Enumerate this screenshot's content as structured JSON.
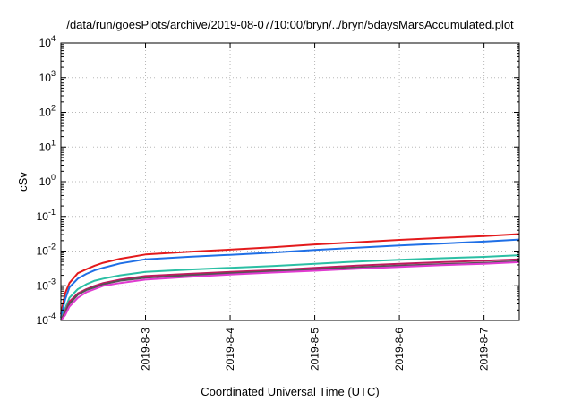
{
  "chart_data": {
    "type": "line",
    "title": "/data/run/goesPlots/archive/2019-08-07/10:00/bryn/../bryn/5daysMarsAccumulated.plot",
    "xlabel": "Coordinated Universal Time (UTC)",
    "ylabel": "cSv",
    "y_scale": "log",
    "ylim": [
      0.0001,
      10000
    ],
    "xlim": [
      "2019-08-02",
      "2019-08-07T10:00"
    ],
    "grid": true,
    "x_ticks": [
      "2019-8-3",
      "2019-8-4",
      "2019-8-5",
      "2019-8-6",
      "2019-8-7"
    ],
    "y_ticks": [
      {
        "value": 0.0001,
        "base": "10",
        "exp": "-4"
      },
      {
        "value": 0.001,
        "base": "10",
        "exp": "-3"
      },
      {
        "value": 0.01,
        "base": "10",
        "exp": "-2"
      },
      {
        "value": 0.1,
        "base": "10",
        "exp": "-1"
      },
      {
        "value": 1,
        "base": "10",
        "exp": "0"
      },
      {
        "value": 10,
        "base": "10",
        "exp": "1"
      },
      {
        "value": 100,
        "base": "10",
        "exp": "2"
      },
      {
        "value": 1000,
        "base": "10",
        "exp": "3"
      },
      {
        "value": 10000,
        "base": "10",
        "exp": "4"
      }
    ],
    "x": [
      "2019-08-02T00:00",
      "2019-08-02T01:12",
      "2019-08-02T02:24",
      "2019-08-02T04:48",
      "2019-08-02T07:12",
      "2019-08-02T09:36",
      "2019-08-02T12:00",
      "2019-08-02T16:48",
      "2019-08-03T00:00",
      "2019-08-03T12:00",
      "2019-08-04T00:00",
      "2019-08-04T12:00",
      "2019-08-05T00:00",
      "2019-08-05T12:00",
      "2019-08-06T00:00",
      "2019-08-06T12:00",
      "2019-08-07T00:00",
      "2019-08-07T10:00"
    ],
    "series": [
      {
        "color": "#e31a1c",
        "values": [
          0.00015,
          0.0006,
          0.0012,
          0.0023,
          0.003,
          0.0038,
          0.0046,
          0.006,
          0.008,
          0.0095,
          0.011,
          0.0128,
          0.0155,
          0.018,
          0.021,
          0.024,
          0.027,
          0.031
        ]
      },
      {
        "color": "#1f6fe6",
        "values": [
          0.00012,
          0.0004,
          0.0009,
          0.0016,
          0.0022,
          0.0028,
          0.0033,
          0.0044,
          0.0058,
          0.0068,
          0.0078,
          0.009,
          0.0108,
          0.0125,
          0.0145,
          0.0165,
          0.0188,
          0.0215
        ]
      },
      {
        "color": "#2bbfa4",
        "values": [
          0.0001,
          0.00022,
          0.00045,
          0.0008,
          0.0011,
          0.0014,
          0.0016,
          0.002,
          0.0025,
          0.0029,
          0.0033,
          0.0037,
          0.0043,
          0.005,
          0.0056,
          0.0062,
          0.0068,
          0.0076
        ]
      },
      {
        "color": "#c0185f",
        "values": [
          0.0001,
          0.00018,
          0.00035,
          0.0006,
          0.0008,
          0.001,
          0.0012,
          0.0015,
          0.0019,
          0.0022,
          0.0025,
          0.0028,
          0.0033,
          0.0038,
          0.0043,
          0.0048,
          0.0053,
          0.0058
        ]
      },
      {
        "color": "#555555",
        "values": [
          0.0001,
          0.00016,
          0.0003,
          0.00055,
          0.00075,
          0.0009,
          0.0011,
          0.0014,
          0.0017,
          0.002,
          0.0023,
          0.0026,
          0.003,
          0.0034,
          0.0038,
          0.0042,
          0.0046,
          0.0051
        ]
      },
      {
        "color": "#e03ad0",
        "values": [
          0.0001,
          0.00014,
          0.00025,
          0.00045,
          0.00065,
          0.0008,
          0.001,
          0.0012,
          0.0015,
          0.0018,
          0.0021,
          0.0024,
          0.0027,
          0.0031,
          0.0035,
          0.0039,
          0.0043,
          0.0048
        ]
      }
    ]
  }
}
